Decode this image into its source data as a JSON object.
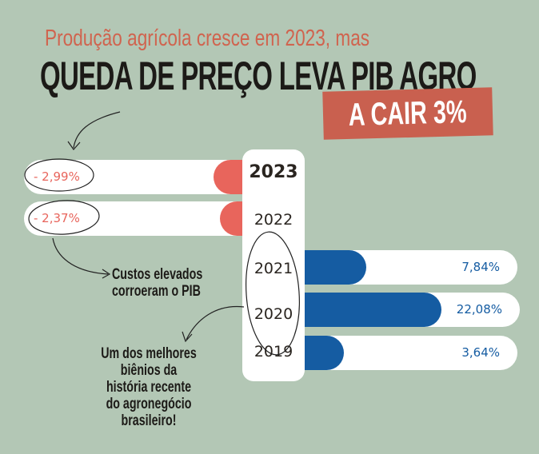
{
  "title_line1": "Produção agrícola cresce em 2023, mas",
  "title_line2": "QUEDA DE PREÇO LEVA PIB AGRO",
  "banner": "A CAIR 3%",
  "colors": {
    "negative": "#e8655c",
    "positive": "#155ca2",
    "background": "#b3c7b5",
    "banner": "#c9604f"
  },
  "chart_data": {
    "type": "bar",
    "orientation": "horizontal-diverging",
    "categories": [
      "2023",
      "2022",
      "2021",
      "2020",
      "2019"
    ],
    "values": [
      -2.99,
      -2.37,
      7.84,
      22.08,
      3.64
    ],
    "labels": [
      "- 2,99%",
      "- 2,37%",
      "7,84%",
      "22,08%",
      "3,64%"
    ],
    "highlighted": "2023"
  },
  "annotations": {
    "costs": [
      "Custos elevados",
      "corroeram o PIB"
    ],
    "biennium": [
      "Um dos melhores",
      "biênios da",
      "história recente",
      "do agronegócio",
      "brasileiro!"
    ]
  }
}
